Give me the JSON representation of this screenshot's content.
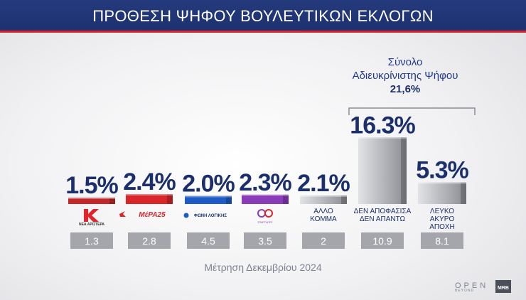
{
  "header": {
    "title": "ΠΡΟΘΕΣΗ ΨΗΦΟΥ ΒΟΥΛΕΥΤΙΚΩΝ ΕΚΛΟΓΩΝ"
  },
  "subtotal": {
    "label_line1": "Σύνολο",
    "label_line2": "Αδιευκρίνιστης  Ψήφου",
    "value": "21,6%"
  },
  "caption": "Μέτρηση Δεκεμβρίου 2024",
  "logos": {
    "channel": "OPEN",
    "channel_sub": "BEYOND",
    "pollster": "MRB"
  },
  "colors": {
    "header": "#1d3170",
    "accent": "#d9262c",
    "value_text": "#1a2f6b"
  },
  "chart_data": {
    "type": "bar",
    "categories": [
      "ΝΕΑ ΑΡΙΣΤΕΡΑ",
      "ΜέΡΑ25",
      "ΦΩΝΗ ΛΟΓΙΚΗΣ",
      "ΣΠΑΡΤΙΑΤΕΣ",
      "ΑΛΛΟ ΚΟΜΜΑ",
      "ΔΕΝ ΑΠΟΦΑΣΙΣΑ ΔΕΝ ΑΠΑΝΤΩ",
      "ΛΕΥΚΟ ΑΚΥΡΟ ΑΠΟΧΗ"
    ],
    "values": [
      1.5,
      2.4,
      2.0,
      2.3,
      2.1,
      16.3,
      5.3
    ],
    "value_labels": [
      "1.5%",
      "2.4%",
      "2.0%",
      "2.3%",
      "2.1%",
      "16.3%",
      "5.3%"
    ],
    "previous_values": [
      1.3,
      2.8,
      4.5,
      3.5,
      2,
      10.9,
      8.1
    ],
    "previous_labels": [
      "1.3",
      "2.8",
      "4.5",
      "3.5",
      "2",
      "10.9",
      "8.1"
    ],
    "text_labels": [
      "",
      "",
      "",
      "",
      "ΑΛΛΟ\nΚΟΜΜΑ",
      "ΔΕΝ ΑΠΟΦΑΣΙΣΑ\nΔΕΝ ΑΠΑΝΤΩ",
      "ΛΕΥΚΟ\nΑΚΥΡΟ\nΑΠΟΧΗ"
    ],
    "logo_texts": [
      "ΝΕΑ ΑΡΙΣΤΕΡΑ",
      "ΜέΡΑ25",
      "ΦΩΝΗ ΛΟΓΙΚΗΣ",
      "ΣΠΑΡΤΙΑΤΕΣ",
      "",
      "",
      ""
    ],
    "bar_colors": [
      "#c0282b",
      "#d8262a",
      "#1f5bc4",
      "#8a3cb8",
      "#6f7178",
      "#6f7178",
      "#6f7178"
    ]
  }
}
